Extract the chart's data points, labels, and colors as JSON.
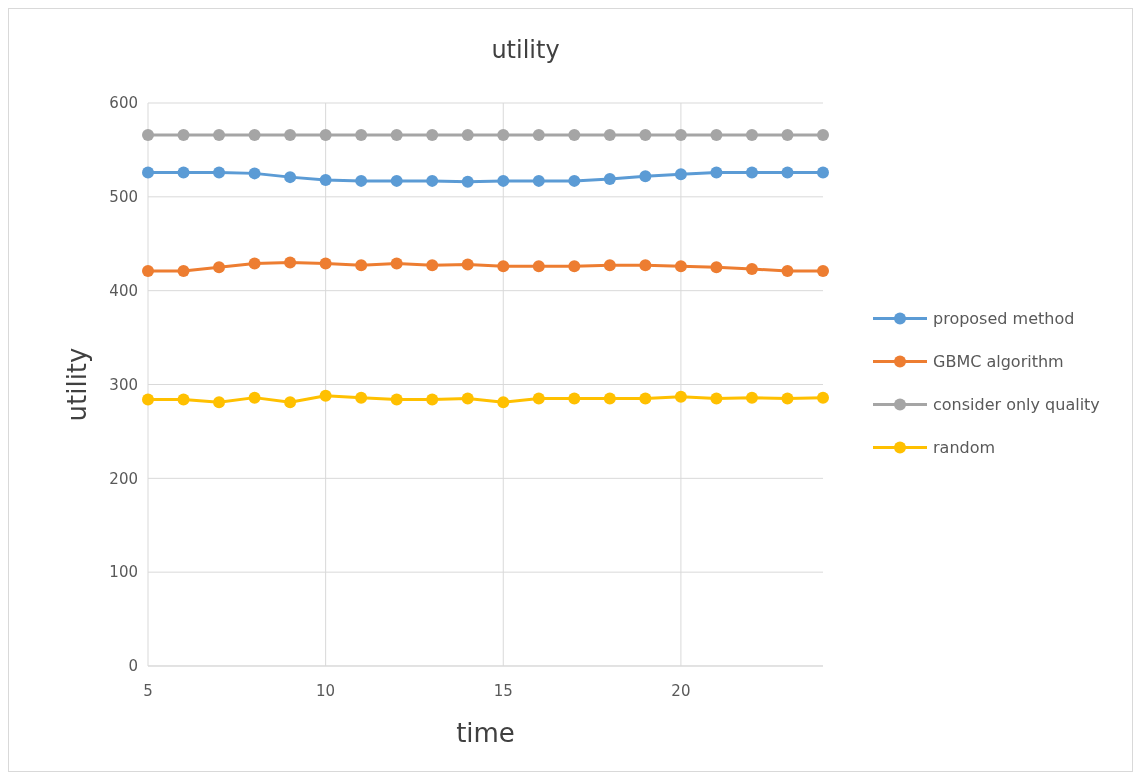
{
  "chart_data": {
    "type": "line",
    "title": "utility",
    "xlabel": "time",
    "ylabel": "utility",
    "x": [
      5,
      6,
      7,
      8,
      9,
      10,
      11,
      12,
      13,
      14,
      15,
      16,
      17,
      18,
      19,
      20,
      21,
      22,
      23,
      24
    ],
    "series": [
      {
        "name": "proposed method",
        "color": "#5b9bd5",
        "values": [
          526,
          526,
          526,
          525,
          521,
          518,
          517,
          517,
          517,
          516,
          517,
          517,
          517,
          519,
          522,
          524,
          526,
          526,
          526,
          526
        ]
      },
      {
        "name": "GBMC algorithm",
        "color": "#ed7d31",
        "values": [
          421,
          421,
          425,
          429,
          430,
          429,
          427,
          429,
          427,
          428,
          426,
          426,
          426,
          427,
          427,
          426,
          425,
          423,
          421,
          421
        ]
      },
      {
        "name": "consider only quality",
        "color": "#a5a5a5",
        "values": [
          566,
          566,
          566,
          566,
          566,
          566,
          566,
          566,
          566,
          566,
          566,
          566,
          566,
          566,
          566,
          566,
          566,
          566,
          566,
          566
        ]
      },
      {
        "name": "random",
        "color": "#ffc000",
        "values": [
          284,
          284,
          281,
          286,
          281,
          288,
          286,
          284,
          284,
          285,
          281,
          285,
          285,
          285,
          285,
          287,
          285,
          286,
          285,
          286
        ]
      }
    ],
    "xlim": [
      5,
      24
    ],
    "xticks": [
      5,
      10,
      15,
      20
    ],
    "ylim": [
      0,
      600
    ],
    "yticks": [
      0,
      100,
      200,
      300,
      400,
      500,
      600
    ],
    "grid": true,
    "legend": "right",
    "marker": "circle",
    "line_style": "solid"
  }
}
